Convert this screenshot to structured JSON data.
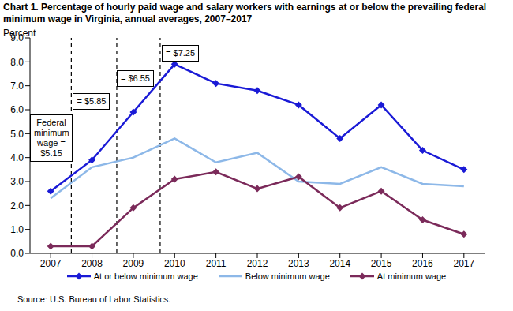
{
  "chart_data": {
    "type": "line",
    "title": "Chart 1. Percentage of hourly paid wage and salary workers with earnings at or below the prevailing federal minimum wage in Virginia, annual averages, 2007–2017",
    "y_label": "Percent",
    "source": "Source: U.S. Bureau of Labor Statistics.",
    "x": [
      2007,
      2008,
      2009,
      2010,
      2011,
      2012,
      2013,
      2014,
      2015,
      2016,
      2017
    ],
    "xlim": [
      2006.5,
      2017.5
    ],
    "xticks": [
      2007,
      2008,
      2009,
      2010,
      2011,
      2012,
      2013,
      2014,
      2015,
      2016,
      2017
    ],
    "ylim": [
      0,
      9
    ],
    "yticks": [
      {
        "value": 0,
        "label": "0.0"
      },
      {
        "value": 1,
        "label": "1.0"
      },
      {
        "value": 2,
        "label": "2.0"
      },
      {
        "value": 3,
        "label": "3.0"
      },
      {
        "value": 4,
        "label": "4.0"
      },
      {
        "value": 5,
        "label": "5.0"
      },
      {
        "value": 6,
        "label": "6.0"
      },
      {
        "value": 7,
        "label": "7.0"
      },
      {
        "value": 8,
        "label": "8.0"
      },
      {
        "value": 9,
        "label": "9.0"
      }
    ],
    "grid": false,
    "legend": "bottom",
    "series": [
      {
        "name": "At or below minimum wage",
        "color": "#1a1ad6",
        "marker": "diamond",
        "values": [
          2.6,
          3.9,
          5.9,
          7.9,
          7.1,
          6.8,
          6.2,
          4.8,
          6.2,
          4.3,
          3.5
        ]
      },
      {
        "name": "Below minimum wage",
        "color": "#8db8e8",
        "marker": "none",
        "values": [
          2.3,
          3.6,
          4.0,
          4.8,
          3.8,
          4.2,
          3.0,
          2.9,
          3.6,
          2.9,
          2.8
        ]
      },
      {
        "name": "At minimum wage",
        "color": "#7b2a5a",
        "marker": "diamond",
        "values": [
          0.3,
          0.3,
          1.9,
          3.1,
          3.4,
          2.7,
          3.2,
          1.9,
          2.6,
          1.4,
          0.8
        ]
      }
    ],
    "reference_lines": [
      {
        "x": 2007.5,
        "line_style": "dashed"
      },
      {
        "x": 2008.6,
        "line_style": "dashed"
      },
      {
        "x": 2009.65,
        "line_style": "dashed"
      }
    ],
    "annotations": [
      {
        "text": "Federal minimum wage = $5.15",
        "x": 2006.5,
        "y": 5.8
      },
      {
        "text": "= $5.85",
        "x": 2007.54,
        "y": 6.7
      },
      {
        "text": "= $6.55",
        "x": 2008.6,
        "y": 7.65
      },
      {
        "text": "= $7.25",
        "x": 2009.69,
        "y": 8.7
      }
    ]
  }
}
